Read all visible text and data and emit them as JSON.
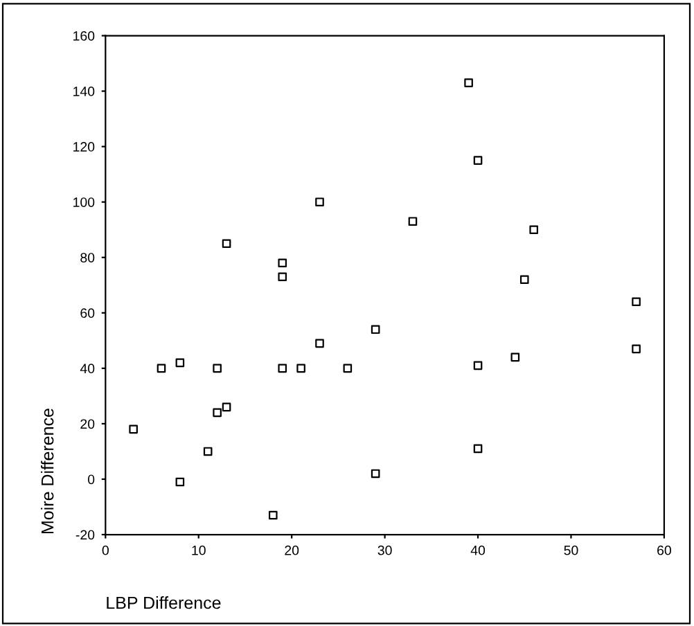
{
  "chart_data": {
    "type": "scatter",
    "xlabel": "LBP Difference",
    "ylabel": "Moire Difference",
    "x": [
      3,
      6,
      8,
      8,
      11,
      12,
      12,
      13,
      13,
      18,
      19,
      19,
      19,
      21,
      23,
      23,
      26,
      29,
      29,
      33,
      39,
      40,
      40,
      40,
      44,
      45,
      46,
      57,
      57
    ],
    "series": [
      {
        "color": "#000000",
        "values": [
          18,
          40,
          42,
          -1,
          10,
          40,
          24,
          26,
          85,
          -13,
          78,
          73,
          40,
          40,
          100,
          49,
          40,
          54,
          2,
          93,
          143,
          115,
          41,
          11,
          44,
          72,
          90,
          64,
          47
        ]
      }
    ],
    "xlim": [
      0,
      60
    ],
    "ylim": [
      -20,
      160
    ],
    "xticks": [
      0,
      10,
      20,
      30,
      40,
      50,
      60
    ],
    "yticks": [
      -20,
      0,
      20,
      40,
      60,
      80,
      100,
      120,
      140,
      160
    ],
    "marker": "square",
    "grid": false,
    "legend": false
  }
}
